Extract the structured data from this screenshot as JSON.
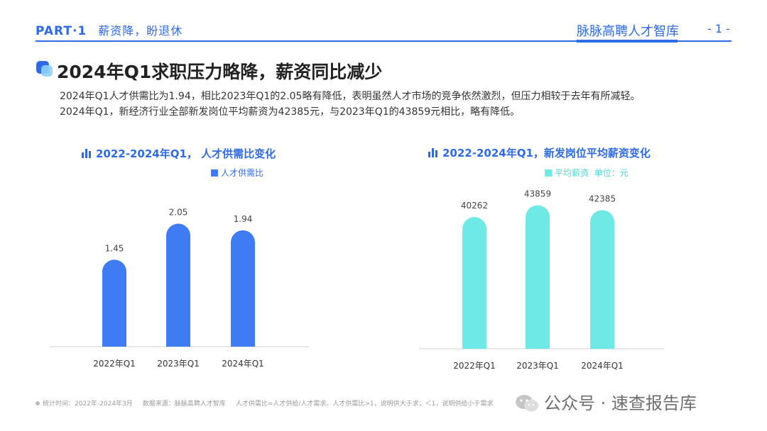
{
  "header": {
    "part": "PART·1",
    "section": "薪资降，盼退休",
    "brand": "脉脉高聘人才智库",
    "page": "- 1 -"
  },
  "main": {
    "title": "2024年Q1求职压力略降，薪资同比减少",
    "desc1": "2024年Q1人才供需比为1.94，相比2023年Q1的2.05略有降低，表明虽然人才市场的竞争依然激烈，但压力相较于去年有所减轻。",
    "desc2": "2024年Q1，新经济行业全部新发岗位平均薪资为42385元，与2023年Q1的43859元相比，略有降低。"
  },
  "colors": {
    "accent": "#2f6ae6",
    "bar1": "#3f7cf4",
    "bar2": "#6fe9e6"
  },
  "chart_data": [
    {
      "type": "bar",
      "title": "2022-2024年Q1， 人才供需比变化",
      "legend": "人才供需比",
      "legend_position": "top-right",
      "categories": [
        "2022年Q1",
        "2023年Q1",
        "2024年Q1"
      ],
      "series": [
        {
          "name": "人才供需比",
          "values": [
            1.45,
            2.05,
            1.94
          ]
        }
      ],
      "value_labels": [
        "1.45",
        "2.05",
        "1.94"
      ],
      "ylim": [
        0,
        2.6
      ],
      "grid": false
    },
    {
      "type": "bar",
      "title": "2022-2024年Q1，新发岗位平均薪资变化",
      "legend": "平均薪资",
      "unit_note": "单位：元",
      "legend_position": "top-right",
      "categories": [
        "2022年Q1",
        "2023年Q1",
        "2024年Q1"
      ],
      "series": [
        {
          "name": "平均薪资",
          "values": [
            40262,
            43859,
            42385
          ]
        }
      ],
      "value_labels": [
        "40262",
        "43859",
        "42385"
      ],
      "ylim": [
        0,
        52000
      ],
      "grid": false
    }
  ],
  "footer": {
    "time": "统计时间：2022年-2024年3月",
    "source": "数据来源：脉脉高聘人才智库",
    "note": "人才供需比=人才供给/人才需求。人才供需比>1，说明供大于求；＜1，说明供给小于需求"
  },
  "watermark": "公众号 · 速查报告库"
}
